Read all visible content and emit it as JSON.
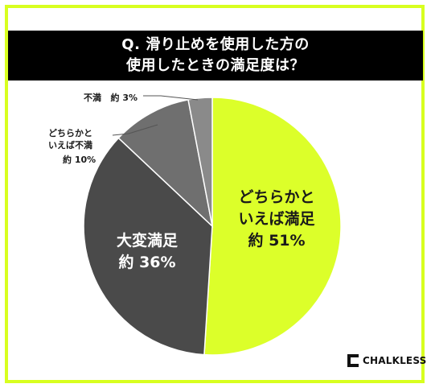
{
  "title": {
    "line1": "Q. 滑り止めを使用した方の",
    "line2": "使用したときの満足度は？"
  },
  "chart_data": {
    "type": "pie",
    "slices": [
      {
        "label": "どちらかといえば満足",
        "value": 51,
        "color": "#dcff2a"
      },
      {
        "label": "大変満足",
        "value": 36,
        "color": "#4a4a4a"
      },
      {
        "label": "どちらかといえば不満",
        "value": 10,
        "color": "#6f6f6f"
      },
      {
        "label": "不満",
        "value": 3,
        "color": "#8a8a8a"
      }
    ]
  },
  "labels": {
    "satisfied_somewhat": {
      "line1": "どちらかと",
      "line2": "いえば満足",
      "pct": "約 51%"
    },
    "very_satisfied": {
      "line1": "大変満足",
      "pct": "約 36%"
    },
    "unsatisfied_somewhat": {
      "line1": "どちらかと",
      "line2": "いえば不満",
      "pct": "約 10%"
    },
    "unsatisfied": {
      "line1": "不満",
      "pct": "約 3%"
    }
  },
  "brand": {
    "name": "CHALKLESS"
  }
}
